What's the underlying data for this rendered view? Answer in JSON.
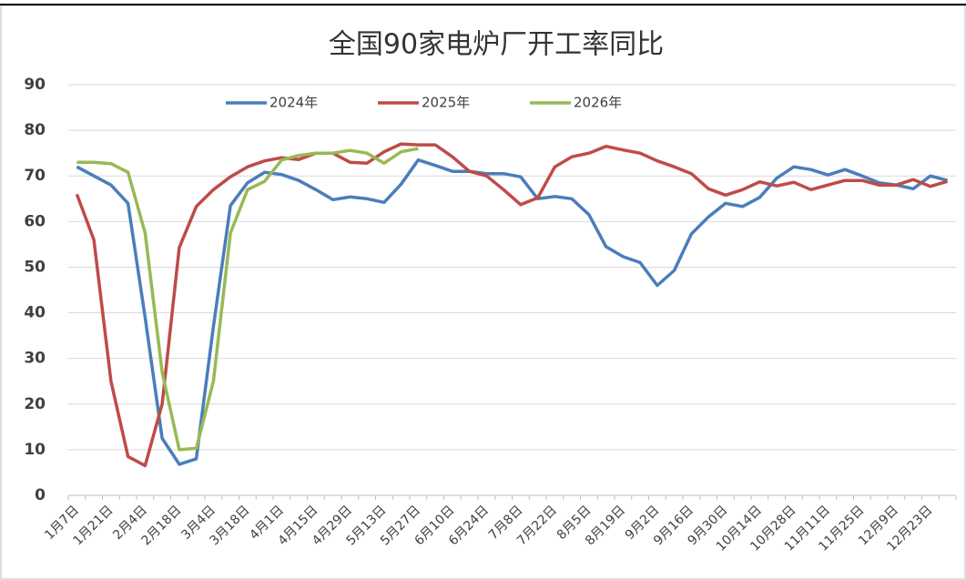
{
  "chart_data": {
    "type": "line",
    "title": "全国90家电炉厂开工率同比",
    "categories": [
      "1月7日",
      null,
      "1月21日",
      null,
      "2月4日",
      null,
      "2月18日",
      null,
      "3月4日",
      null,
      "3月18日",
      null,
      "4月1日",
      null,
      "4月15日",
      null,
      "4月29日",
      null,
      "5月13日",
      null,
      "5月27日",
      null,
      "6月10日",
      null,
      "6月24日",
      null,
      "7月8日",
      null,
      "7月22日",
      null,
      "8月5日",
      null,
      "8月19日",
      null,
      "9月2日",
      null,
      "9月16日",
      null,
      "9月30日",
      null,
      "10月14日",
      null,
      "10月28日",
      null,
      "11月11日",
      null,
      "11月25日",
      null,
      "12月9日",
      null,
      "12月23日",
      null
    ],
    "series": [
      {
        "name": "2024年",
        "color": "#4a7ebb",
        "values": [
          72,
          70,
          68,
          64,
          39,
          12.5,
          6.8,
          8,
          37,
          63.5,
          68.5,
          70.8,
          70.3,
          69,
          67,
          64.8,
          65.4,
          65,
          64.2,
          68.2,
          73.5,
          72.3,
          71,
          71,
          70.5,
          70.5,
          69.8,
          65,
          65.5,
          65,
          61.5,
          54.5,
          52.3,
          51,
          46,
          49.3,
          57.3,
          61,
          64,
          63.3,
          65.3,
          69.5,
          72,
          71.4,
          70.2,
          71.4,
          70,
          68.5,
          68,
          67.2,
          70,
          69
        ]
      },
      {
        "name": "2025年",
        "color": "#be4b48",
        "values": [
          66,
          56,
          25,
          8.5,
          6.5,
          20,
          54.3,
          63.3,
          67,
          69.8,
          72,
          73.3,
          74,
          73.6,
          75,
          75,
          73,
          72.8,
          75.3,
          77,
          76.8,
          76.8,
          74.2,
          71,
          70,
          67,
          63.7,
          65.2,
          72,
          74.2,
          75,
          76.5,
          75.7,
          75,
          73.3,
          72,
          70.5,
          67.2,
          65.8,
          67,
          68.7,
          67.8,
          68.6,
          67,
          68,
          69,
          69,
          68,
          68,
          69.2,
          67.7,
          68.8
        ]
      },
      {
        "name": "2026年",
        "color": "#98b954",
        "values": [
          73,
          73,
          72.7,
          70.8,
          57.5,
          27,
          10,
          10.3,
          25,
          57.5,
          67,
          68.8,
          73.5,
          74.5,
          75,
          75,
          75.6,
          75,
          72.8,
          75.3,
          76,
          null,
          null,
          null,
          null,
          null,
          null,
          null,
          null,
          null,
          null,
          null,
          null,
          null,
          null,
          null,
          null,
          null,
          null,
          null,
          null,
          null,
          null,
          null,
          null,
          null,
          null,
          null,
          null,
          null,
          null,
          null
        ]
      }
    ],
    "ylim": [
      0,
      90
    ],
    "yticks": [
      0,
      10,
      20,
      30,
      40,
      50,
      60,
      70,
      80,
      90
    ],
    "grid": true
  }
}
